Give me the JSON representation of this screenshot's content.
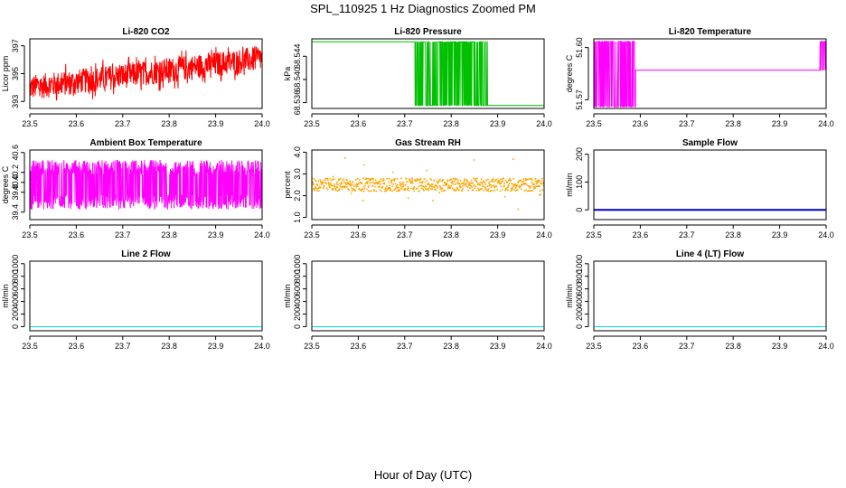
{
  "figure": {
    "title": "SPL_110925  1 Hz Diagnostics Zoomed PM",
    "xlabel": "Hour of Day (UTC)"
  },
  "chart_data": [
    {
      "type": "line",
      "title": "Li-820 CO2",
      "ylabel": "Licor ppm",
      "xlabel": "Hour of Day (UTC)",
      "xlim": [
        23.5,
        24.0
      ],
      "ylim": [
        392.5,
        397.5
      ],
      "xticks": [
        "23.5",
        "23.6",
        "23.7",
        "23.8",
        "23.9",
        "24.0"
      ],
      "yticks": [
        "393",
        "395",
        "397"
      ],
      "color": "#ff0000",
      "series": [
        {
          "name": "CO2",
          "pattern": "noisy-trend",
          "start": 394.0,
          "end": 396.1,
          "noise": 0.9
        }
      ]
    },
    {
      "type": "line",
      "title": "Li-820 Pressure",
      "ylabel": "kPa",
      "xlabel": "Hour of Day (UTC)",
      "xlim": [
        23.5,
        24.0
      ],
      "ylim": [
        68.535,
        68.547
      ],
      "xticks": [
        "23.5",
        "23.6",
        "23.7",
        "23.8",
        "23.9",
        "24.0"
      ],
      "yticks": [
        "68.536",
        "68.540",
        "68.544"
      ],
      "color": "#00c000",
      "series": [
        {
          "name": "Pressure",
          "pattern": "two-level",
          "high": 68.5465,
          "low": 68.5355,
          "high_until": 23.722,
          "burst_range": [
            23.722,
            23.878
          ]
        }
      ]
    },
    {
      "type": "line",
      "title": "Li-820 Temperature",
      "ylabel": "degrees C",
      "xlabel": "Hour of Day (UTC)",
      "xlim": [
        23.5,
        24.0
      ],
      "ylim": [
        51.565,
        51.605
      ],
      "xticks": [
        "23.5",
        "23.6",
        "23.7",
        "23.8",
        "23.9",
        "24.0"
      ],
      "yticks": [
        "51.57",
        "51.60"
      ],
      "color": "#ff00ff",
      "series": [
        {
          "name": "Temperature",
          "pattern": "two-level",
          "high": 51.6035,
          "base": 51.587,
          "low": 51.566,
          "burst_range": [
            23.5,
            23.59
          ],
          "late_burst": [
            23.985,
            24.0
          ]
        }
      ]
    },
    {
      "type": "line",
      "title": "Ambient Box Temperature",
      "ylabel": "degrees C",
      "xlabel": "Hour of Day (UTC)",
      "xlim": [
        23.5,
        24.0
      ],
      "ylim": [
        39.25,
        40.65
      ],
      "xticks": [
        "23.5",
        "23.6",
        "23.7",
        "23.8",
        "23.9",
        "24.0"
      ],
      "yticks": [
        "39.4",
        "39.8",
        "40.0",
        "40.2",
        "40.6"
      ],
      "color": "#ff00ff",
      "series": [
        {
          "name": "Box Temperature",
          "pattern": "fill-band",
          "low": 39.45,
          "high": 40.45
        }
      ]
    },
    {
      "type": "scatter",
      "title": "Gas Stream RH",
      "ylabel": "percent",
      "xlabel": "Hour of Day (UTC)",
      "xlim": [
        23.5,
        24.0
      ],
      "ylim": [
        0.9,
        4.1
      ],
      "xticks": [
        "23.5",
        "23.6",
        "23.7",
        "23.8",
        "23.9",
        "24.0"
      ],
      "yticks": [
        "1.0",
        "2.0",
        "3.0",
        "4.0"
      ],
      "color": "#ffa500",
      "series": [
        {
          "name": "RH",
          "pattern": "noisy-band",
          "center": 2.5,
          "spread": 0.3
        }
      ]
    },
    {
      "type": "line",
      "title": "Sample Flow",
      "ylabel": "ml/min",
      "xlabel": "Hour of Day (UTC)",
      "xlim": [
        23.5,
        24.0
      ],
      "ylim": [
        -35,
        215
      ],
      "xticks": [
        "23.5",
        "23.6",
        "23.7",
        "23.8",
        "23.9",
        "24.0"
      ],
      "yticks": [
        "0",
        "100",
        "200"
      ],
      "color": "#0000cc",
      "line_width": 2,
      "series": [
        {
          "name": "Sample Flow",
          "pattern": "constant",
          "value": 0
        }
      ]
    },
    {
      "type": "line",
      "title": "Line 2 Flow",
      "ylabel": "ml/min",
      "xlabel": "Hour of Day (UTC)",
      "xlim": [
        23.5,
        24.0
      ],
      "ylim": [
        -65,
        1040
      ],
      "xticks": [
        "23.5",
        "23.6",
        "23.7",
        "23.8",
        "23.9",
        "24.0"
      ],
      "yticks": [
        "0",
        "200",
        "400",
        "600",
        "800",
        "1000"
      ],
      "color": "#00e5ee",
      "line_width": 1,
      "series": [
        {
          "name": "Line 2 Flow",
          "pattern": "constant",
          "value": 0
        }
      ]
    },
    {
      "type": "line",
      "title": "Line 3 Flow",
      "ylabel": "ml/min",
      "xlabel": "Hour of Day (UTC)",
      "xlim": [
        23.5,
        24.0
      ],
      "ylim": [
        -65,
        1040
      ],
      "xticks": [
        "23.5",
        "23.6",
        "23.7",
        "23.8",
        "23.9",
        "24.0"
      ],
      "yticks": [
        "0",
        "200",
        "400",
        "600",
        "800",
        "1000"
      ],
      "color": "#00e5ee",
      "line_width": 1,
      "series": [
        {
          "name": "Line 3 Flow",
          "pattern": "constant",
          "value": 0
        }
      ]
    },
    {
      "type": "line",
      "title": "Line 4 (LT) Flow",
      "ylabel": "ml/min",
      "xlabel": "Hour of Day (UTC)",
      "xlim": [
        23.5,
        24.0
      ],
      "ylim": [
        -65,
        1040
      ],
      "xticks": [
        "23.5",
        "23.6",
        "23.7",
        "23.8",
        "23.9",
        "24.0"
      ],
      "yticks": [
        "0",
        "200",
        "400",
        "600",
        "800",
        "1000"
      ],
      "color": "#00e5ee",
      "line_width": 1,
      "series": [
        {
          "name": "Line 4 Flow",
          "pattern": "constant",
          "value": 0
        }
      ]
    }
  ]
}
